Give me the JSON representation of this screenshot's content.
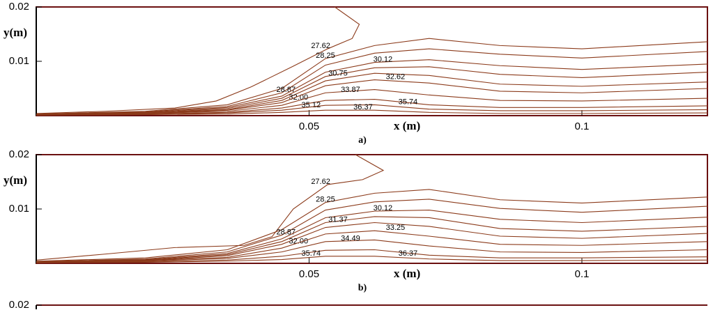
{
  "chart_data": [
    {
      "type": "contour",
      "x_label": "x (m)",
      "y_label": "y(m)",
      "caption": "a)",
      "xlim": [
        0,
        0.123
      ],
      "ylim": [
        0,
        0.02
      ],
      "xticks": [
        0.05,
        0.1
      ],
      "yticks": [
        0.01,
        0.02
      ],
      "color": "#8b3a1a",
      "x": [
        0.123,
        0.1,
        0.085,
        0.072,
        0.062,
        0.053,
        0.045,
        0.035,
        0.02,
        0
      ],
      "series": [
        {
          "name": "27.62",
          "x": [
            0.0547,
            0.0592,
            0.0579,
            0.0534,
            0.0471,
            0.0394,
            0.033,
            0.0254,
            0.0126,
            0.0001
          ],
          "values": [
            0.02,
            0.0168,
            0.0142,
            0.0123,
            0.0091,
            0.0053,
            0.0027,
            0.0014,
            0.0008,
            0.0004
          ]
        },
        {
          "name": "28.25",
          "values": [
            0.0136,
            0.0123,
            0.0129,
            0.0142,
            0.0129,
            0.0105,
            0.005,
            0.002,
            0.0008,
            0.0003
          ]
        },
        {
          "name": "28.87",
          "values": [
            0.0118,
            0.0106,
            0.0113,
            0.0123,
            0.0115,
            0.0093,
            0.0042,
            0.0017,
            0.0007,
            0.0003
          ]
        },
        {
          "name": "30.12",
          "values": [
            0.0095,
            0.0085,
            0.0092,
            0.0103,
            0.0098,
            0.008,
            0.0036,
            0.0015,
            0.0006,
            0.0002
          ]
        },
        {
          "name": "30.75",
          "values": [
            0.008,
            0.007,
            0.0076,
            0.009,
            0.0088,
            0.0072,
            0.0032,
            0.0013,
            0.0005,
            0.0002
          ]
        },
        {
          "name": "32.00",
          "values": [
            0.0062,
            0.0054,
            0.0058,
            0.0074,
            0.0078,
            0.0064,
            0.0028,
            0.0011,
            0.0005,
            0.0002
          ]
        },
        {
          "name": "32.62",
          "values": [
            0.005,
            0.0042,
            0.0045,
            0.006,
            0.0066,
            0.0055,
            0.0024,
            0.001,
            0.0004,
            0.0002
          ]
        },
        {
          "name": "33.87",
          "values": [
            0.0032,
            0.0027,
            0.0028,
            0.0038,
            0.0048,
            0.0042,
            0.0019,
            0.0008,
            0.0004,
            0.0001
          ]
        },
        {
          "name": "35.12",
          "values": [
            0.0018,
            0.0015,
            0.0015,
            0.002,
            0.003,
            0.0028,
            0.0014,
            0.0006,
            0.0003,
            0.0001
          ]
        },
        {
          "name": "35.74",
          "values": [
            0.0011,
            0.0009,
            0.0009,
            0.0012,
            0.002,
            0.0019,
            0.001,
            0.0005,
            0.0002,
            0.0001
          ]
        },
        {
          "name": "36.37",
          "values": [
            0.0005,
            0.0004,
            0.0004,
            0.0006,
            0.001,
            0.001,
            0.0006,
            0.0003,
            0.0002,
            0.0001
          ]
        }
      ]
    },
    {
      "type": "contour",
      "x_label": "x (m)",
      "y_label": "y(m)",
      "caption": "b)",
      "xlim": [
        0,
        0.123
      ],
      "ylim": [
        0,
        0.02
      ],
      "xticks": [
        0.05,
        0.1
      ],
      "yticks": [
        0.01,
        0.02
      ],
      "color": "#8b3a1a",
      "x": [
        0.123,
        0.1,
        0.085,
        0.072,
        0.062,
        0.053,
        0.045,
        0.035,
        0.02,
        0
      ],
      "series": [
        {
          "name": "27.62",
          "x": [
            0.0585,
            0.0636,
            0.0598,
            0.0534,
            0.0471,
            0.0432,
            0.0381,
            0.0254,
            0.0126,
            0.0001
          ],
          "values": [
            0.02,
            0.0171,
            0.0154,
            0.0145,
            0.01,
            0.0049,
            0.0033,
            0.0029,
            0.0017,
            0.0006
          ]
        },
        {
          "name": "28.25",
          "values": [
            0.0122,
            0.0111,
            0.0117,
            0.0136,
            0.0129,
            0.0112,
            0.0062,
            0.0025,
            0.001,
            0.0004
          ]
        },
        {
          "name": "28.87",
          "values": [
            0.0105,
            0.0094,
            0.0101,
            0.0118,
            0.0113,
            0.0098,
            0.0052,
            0.0021,
            0.0008,
            0.0003
          ]
        },
        {
          "name": "30.12",
          "values": [
            0.0085,
            0.0075,
            0.0081,
            0.0098,
            0.0096,
            0.0084,
            0.0045,
            0.0018,
            0.0007,
            0.0003
          ]
        },
        {
          "name": "31.37",
          "values": [
            0.0068,
            0.0059,
            0.0064,
            0.0084,
            0.0086,
            0.0075,
            0.004,
            0.0016,
            0.0006,
            0.0002
          ]
        },
        {
          "name": "32.00",
          "values": [
            0.0055,
            0.0046,
            0.005,
            0.0068,
            0.0075,
            0.0066,
            0.0035,
            0.0014,
            0.0005,
            0.0002
          ]
        },
        {
          "name": "33.25",
          "values": [
            0.004,
            0.0033,
            0.0035,
            0.005,
            0.006,
            0.0054,
            0.0028,
            0.0011,
            0.0005,
            0.0002
          ]
        },
        {
          "name": "34.49",
          "values": [
            0.0025,
            0.002,
            0.0021,
            0.0032,
            0.0043,
            0.004,
            0.0021,
            0.0009,
            0.0004,
            0.0001
          ]
        },
        {
          "name": "35.74",
          "values": [
            0.0012,
            0.001,
            0.001,
            0.0015,
            0.0025,
            0.0024,
            0.0013,
            0.0006,
            0.0003,
            0.0001
          ]
        },
        {
          "name": "36.37",
          "values": [
            0.0006,
            0.0005,
            0.0005,
            0.0008,
            0.0013,
            0.0013,
            0.0007,
            0.0004,
            0.0002,
            0.0001
          ]
        }
      ]
    },
    {
      "type": "contour",
      "xlim": [
        0,
        0.123
      ],
      "ylim": [
        0,
        0.02
      ],
      "yticks": [
        0.02
      ],
      "color": "#8b3a1a"
    }
  ]
}
